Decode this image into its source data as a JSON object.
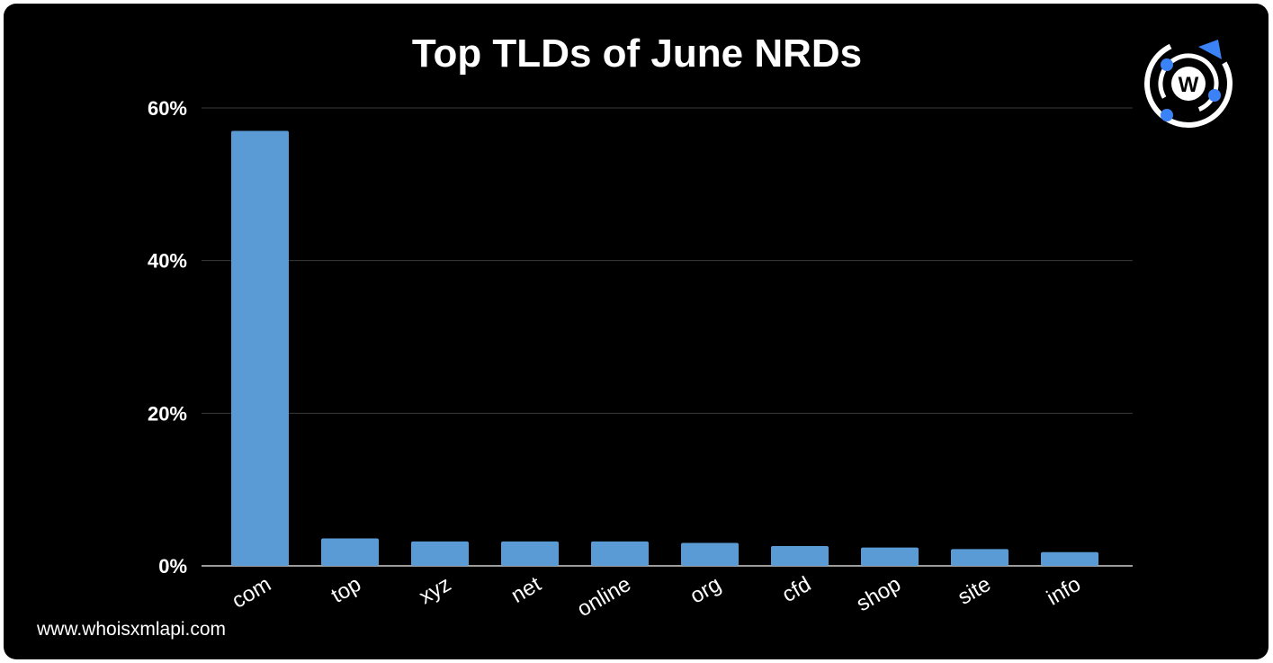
{
  "chart_data": {
    "type": "bar",
    "title": "Top TLDs of June NRDs",
    "xlabel": "",
    "ylabel": "",
    "categories": [
      "com",
      "top",
      "xyz",
      "net",
      "online",
      "org",
      "cfd",
      "shop",
      "site",
      "info"
    ],
    "values": [
      57.0,
      3.6,
      3.2,
      3.2,
      3.2,
      3.0,
      2.6,
      2.4,
      2.2,
      1.8
    ],
    "yticks": [
      "0%",
      "20%",
      "40%",
      "60%"
    ],
    "ytick_values": [
      0,
      20,
      40,
      60
    ],
    "ylim": [
      0,
      60
    ],
    "grid": true,
    "legend": "none",
    "bar_color": "#5b9bd5",
    "grid_color": "#3a3a3a",
    "background": "#000000"
  },
  "footer": {
    "url_text": "www.whoisxmlapi.com"
  },
  "logo": {
    "icon": "whoisxmlapi-logo-icon",
    "letter": "W",
    "accent_color": "#3b82f6"
  }
}
